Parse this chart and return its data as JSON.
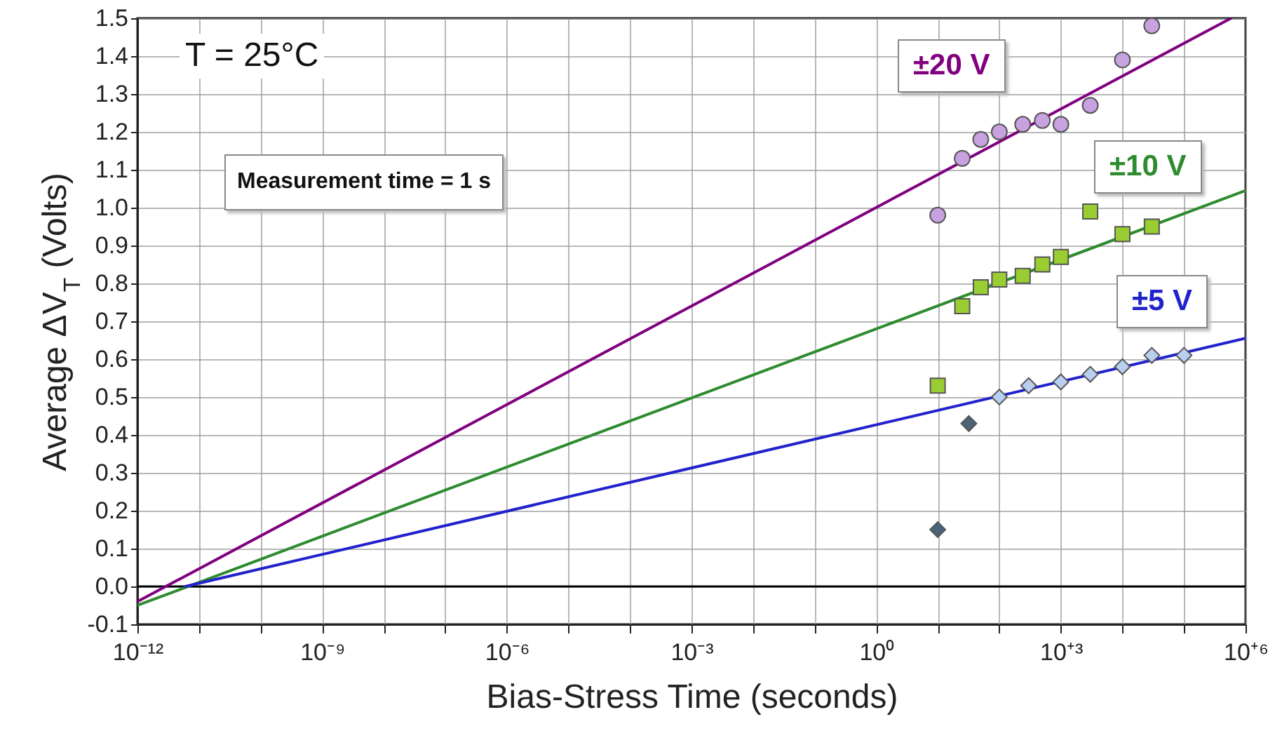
{
  "chart_data": {
    "type": "scatter",
    "xlabel": "Bias-Stress Time (seconds)",
    "ylabel": "Average  ΔV$_{T}$  (Volts)",
    "log": "x",
    "xlim": [
      1e-12,
      1000000.0
    ],
    "xticks": [
      {
        "value": 1e-12,
        "label": "10⁻¹²"
      },
      {
        "value": 1e-11,
        "label": null
      },
      {
        "value": 1e-10,
        "label": null
      },
      {
        "value": 1e-09,
        "label": "10⁻⁹"
      },
      {
        "value": 1e-08,
        "label": null
      },
      {
        "value": 1e-07,
        "label": null
      },
      {
        "value": 1e-06,
        "label": "10⁻⁶"
      },
      {
        "value": 1e-05,
        "label": null
      },
      {
        "value": 0.0001,
        "label": null
      },
      {
        "value": 0.001,
        "label": "10⁻³"
      },
      {
        "value": 0.01,
        "label": null
      },
      {
        "value": 0.1,
        "label": null
      },
      {
        "value": 1,
        "label": "10⁰"
      },
      {
        "value": 10,
        "label": null
      },
      {
        "value": 100,
        "label": null
      },
      {
        "value": 1000,
        "label": "10⁺³"
      },
      {
        "value": 10000,
        "label": null
      },
      {
        "value": 100000,
        "label": null
      },
      {
        "value": 1000000,
        "label": "10⁺⁶"
      }
    ],
    "ylim": [
      -0.1,
      1.5
    ],
    "yticks": [
      {
        "value": -0.1,
        "label": "-0.1"
      },
      {
        "value": 0,
        "label": "0.0"
      },
      0.1,
      0.2,
      0.3,
      0.4,
      0.5,
      0.6,
      0.7,
      0.8,
      0.9,
      {
        "value": 1,
        "label": "1.0"
      },
      1.1,
      1.2,
      1.3,
      1.4,
      1.5
    ],
    "grid": true,
    "legend": false,
    "series": [
      {
        "type": "line",
        "color": "#800080",
        "marker": "none",
        "x": [
          1e-12,
          580000
        ],
        "values": [
          -0.04,
          1.5
        ]
      },
      {
        "type": "line",
        "color": "#2e8b2e",
        "marker": "none",
        "x": [
          1e-12,
          1000000
        ],
        "values": [
          -0.05,
          1.045
        ]
      },
      {
        "type": "line",
        "color": "#2222cc",
        "marker": "none",
        "x": [
          6e-12,
          1000000
        ],
        "values": [
          0.0,
          0.655
        ]
      },
      {
        "name": "±20 V",
        "color": "#c8a2e0",
        "marker": "circle",
        "x": [
          10,
          25,
          50,
          100,
          240,
          500,
          1000,
          3000,
          10000,
          30000
        ],
        "values": [
          0.98,
          1.13,
          1.18,
          1.2,
          1.22,
          1.23,
          1.22,
          1.27,
          1.39,
          1.48
        ]
      },
      {
        "name": "±10 V",
        "color": "#9acd32",
        "marker": "square",
        "x": [
          10,
          25,
          50,
          100,
          240,
          500,
          1000,
          3000,
          10000,
          30000
        ],
        "values": [
          0.53,
          0.74,
          0.79,
          0.81,
          0.82,
          0.85,
          0.87,
          0.99,
          0.93,
          0.95
        ]
      },
      {
        "name": "±5 V",
        "color": "#b8cff0",
        "colors": [
          "#4a6378",
          "#4a6378",
          null,
          null,
          null,
          null,
          null,
          null,
          null
        ],
        "marker": "diamond",
        "x": [
          10,
          32,
          100,
          300,
          1000,
          3000,
          10000,
          30000,
          100000
        ],
        "values": [
          0.15,
          0.43,
          0.5,
          0.53,
          0.54,
          0.56,
          0.58,
          0.61,
          0.61
        ]
      }
    ],
    "ref_lines": [
      {
        "axis": "y",
        "value": 0,
        "color": "#000000"
      }
    ],
    "annotations": [
      "T = 25°C",
      "Measurement time = 1 s"
    ]
  }
}
